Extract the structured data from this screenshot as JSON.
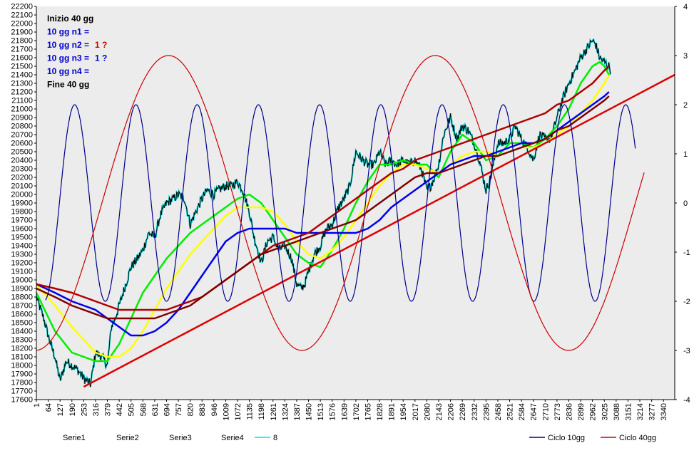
{
  "chart_data": {
    "type": "line",
    "annotations": [
      {
        "text": "Inizio 40 gg",
        "color": "#000000",
        "bold": true
      },
      {
        "text": "10 gg n1 =",
        "color": "#0000cc",
        "bold": true
      },
      {
        "text": "10 gg n2 =",
        "color": "#0000cc",
        "bold": true,
        "suffix": "1 ?",
        "suffix_color": "#cc0000"
      },
      {
        "text": "10 gg n3 =",
        "color": "#0000cc",
        "bold": true,
        "suffix": "1 ?",
        "suffix_color": "#0000cc"
      },
      {
        "text": "10 gg n4 =",
        "color": "#0000cc",
        "bold": true
      },
      {
        "text": "Fine 40 gg",
        "color": "#000000",
        "bold": true
      }
    ],
    "x_ticks": [
      "1",
      "64",
      "127",
      "190",
      "253",
      "316",
      "379",
      "442",
      "505",
      "568",
      "631",
      "694",
      "757",
      "820",
      "883",
      "946",
      "1009",
      "1072",
      "1135",
      "1198",
      "1261",
      "1324",
      "1387",
      "1450",
      "1513",
      "1576",
      "1639",
      "1702",
      "1765",
      "1828",
      "1891",
      "1954",
      "2017",
      "2080",
      "2143",
      "2206",
      "2269",
      "2332",
      "2395",
      "2458",
      "2521",
      "2584",
      "2647",
      "2710",
      "2773",
      "2836",
      "2899",
      "2962",
      "3025",
      "3088",
      "3151",
      "3214",
      "3277",
      "3340"
    ],
    "x_range": [
      1,
      3400
    ],
    "y_left": {
      "min": 17600,
      "max": 22200,
      "step": 100
    },
    "y_right": {
      "min": -4,
      "max": 4,
      "step": 1
    },
    "grid": false,
    "legend_position": "bottom",
    "legend": [
      {
        "name": "Serie1",
        "color": null
      },
      {
        "name": "Serie2",
        "color": null
      },
      {
        "name": "Serie3",
        "color": null
      },
      {
        "name": "Serie4",
        "color": null
      },
      {
        "name": "8",
        "color": "#00e0e0"
      },
      {
        "name": "Ciclo 10gg",
        "color": "#00008b"
      },
      {
        "name": "Ciclo 40gg",
        "color": "#cc0000"
      }
    ],
    "series": [
      {
        "key": "price",
        "style": "price",
        "color": "#000000",
        "color2": "#00d0d0",
        "width": 1.2,
        "axis": "left",
        "x": [
          1,
          40,
          70,
          100,
          127,
          160,
          190,
          220,
          253,
          290,
          316,
          350,
          379,
          400,
          420,
          442,
          470,
          505,
          540,
          568,
          600,
          631,
          660,
          694,
          730,
          757,
          790,
          820,
          850,
          883,
          910,
          946,
          970,
          1009,
          1040,
          1072,
          1100,
          1135,
          1160,
          1180,
          1198,
          1230,
          1261,
          1290,
          1324,
          1360,
          1387,
          1410,
          1430,
          1450,
          1480,
          1513,
          1545,
          1576,
          1610,
          1639,
          1670,
          1702,
          1720,
          1740,
          1765,
          1800,
          1828,
          1860,
          1891,
          1920,
          1954,
          1985,
          2017,
          2050,
          2080,
          2100,
          2120,
          2143,
          2170,
          2206,
          2240,
          2269,
          2300,
          2332,
          2360,
          2395,
          2420,
          2458,
          2490,
          2521,
          2550,
          2584,
          2615,
          2647,
          2680,
          2710,
          2740,
          2773,
          2800,
          2836,
          2870,
          2899,
          2930,
          2962,
          2980,
          3000,
          3025,
          3050,
          3060
        ],
        "y": [
          18800,
          18550,
          18300,
          18100,
          17820,
          18050,
          18000,
          17950,
          17850,
          17780,
          18150,
          18100,
          18000,
          18450,
          18550,
          18700,
          18900,
          19150,
          19250,
          19350,
          19550,
          19500,
          19750,
          19900,
          19950,
          20000,
          19950,
          19650,
          19800,
          19950,
          20050,
          20000,
          20050,
          20100,
          20100,
          20150,
          20050,
          19800,
          19500,
          19350,
          19200,
          19450,
          19500,
          19350,
          19400,
          19250,
          18950,
          18900,
          18950,
          19100,
          19300,
          19400,
          19600,
          19650,
          19850,
          19950,
          20100,
          20500,
          20450,
          20400,
          20350,
          20350,
          20500,
          20350,
          20400,
          20350,
          20400,
          20350,
          20400,
          20300,
          20050,
          20100,
          20200,
          20350,
          20700,
          20900,
          20650,
          20800,
          20750,
          20600,
          20400,
          20050,
          20200,
          20600,
          20600,
          20650,
          20800,
          20650,
          20550,
          20400,
          20700,
          20650,
          20650,
          20900,
          21100,
          21300,
          21450,
          21600,
          21700,
          21800,
          21750,
          21600,
          21550,
          21500,
          21450
        ]
      },
      {
        "key": "ma_fast",
        "style": "solid",
        "color": "#00ee00",
        "width": 2.5,
        "axis": "left",
        "x": [
          1,
          100,
          190,
          253,
          316,
          379,
          442,
          505,
          568,
          631,
          694,
          757,
          820,
          883,
          946,
          1009,
          1072,
          1135,
          1198,
          1261,
          1324,
          1387,
          1450,
          1513,
          1576,
          1639,
          1702,
          1765,
          1828,
          1891,
          1954,
          2017,
          2080,
          2143,
          2206,
          2269,
          2332,
          2395,
          2458,
          2521,
          2584,
          2647,
          2710,
          2773,
          2836,
          2899,
          2962,
          3000,
          3025,
          3050
        ],
        "y": [
          18850,
          18400,
          18150,
          18100,
          18050,
          18050,
          18250,
          18550,
          18850,
          19050,
          19250,
          19400,
          19550,
          19650,
          19750,
          19850,
          19950,
          20000,
          19900,
          19700,
          19500,
          19300,
          19200,
          19150,
          19350,
          19600,
          19900,
          20150,
          20350,
          20350,
          20400,
          20350,
          20350,
          20200,
          20500,
          20700,
          20600,
          20400,
          20450,
          20600,
          20600,
          20550,
          20650,
          20800,
          21000,
          21300,
          21500,
          21550,
          21500,
          21400
        ]
      },
      {
        "key": "ma_mid",
        "style": "solid",
        "color": "#ffff00",
        "width": 2.5,
        "axis": "left",
        "x": [
          1,
          100,
          190,
          253,
          316,
          379,
          442,
          505,
          568,
          631,
          694,
          757,
          820,
          883,
          946,
          1009,
          1072,
          1135,
          1198,
          1261,
          1324,
          1387,
          1450,
          1513,
          1576,
          1639,
          1702,
          1765,
          1828,
          1891,
          1954,
          2017,
          2080,
          2143,
          2206,
          2269,
          2332,
          2395,
          2458,
          2521,
          2584,
          2647,
          2710,
          2773,
          2836,
          2899,
          2962,
          3025,
          3050
        ],
        "y": [
          18950,
          18700,
          18450,
          18300,
          18150,
          18100,
          18100,
          18200,
          18400,
          18650,
          18900,
          19100,
          19300,
          19450,
          19600,
          19750,
          19850,
          19850,
          19850,
          19800,
          19650,
          19450,
          19300,
          19250,
          19350,
          19500,
          19700,
          19900,
          20100,
          20250,
          20350,
          20350,
          20300,
          20250,
          20350,
          20450,
          20500,
          20500,
          20450,
          20500,
          20550,
          20550,
          20600,
          20700,
          20800,
          20950,
          21100,
          21300,
          21400
        ]
      },
      {
        "key": "ma_slow",
        "style": "solid",
        "color": "#0000ee",
        "width": 2.5,
        "axis": "left",
        "x": [
          1,
          100,
          190,
          253,
          316,
          379,
          442,
          505,
          568,
          631,
          694,
          757,
          820,
          883,
          946,
          1009,
          1072,
          1135,
          1198,
          1261,
          1324,
          1387,
          1450,
          1513,
          1576,
          1639,
          1702,
          1765,
          1828,
          1891,
          1954,
          2017,
          2080,
          2143,
          2206,
          2269,
          2332,
          2395,
          2458,
          2521,
          2584,
          2647,
          2710,
          2773,
          2836,
          2899,
          2962,
          3025,
          3050
        ],
        "y": [
          18950,
          18850,
          18750,
          18700,
          18650,
          18550,
          18450,
          18350,
          18350,
          18400,
          18500,
          18650,
          18850,
          19050,
          19250,
          19450,
          19550,
          19600,
          19600,
          19600,
          19600,
          19550,
          19550,
          19550,
          19550,
          19550,
          19550,
          19600,
          19700,
          19850,
          19950,
          20050,
          20150,
          20250,
          20350,
          20400,
          20450,
          20450,
          20500,
          20550,
          20600,
          20600,
          20650,
          20750,
          20850,
          20950,
          21050,
          21150,
          21200
        ]
      },
      {
        "key": "ma_long1",
        "style": "solid",
        "color": "#b00000",
        "width": 2.5,
        "axis": "left",
        "x": [
          1,
          100,
          190,
          253,
          316,
          379,
          442,
          505,
          568,
          631,
          694,
          757,
          820,
          883,
          946,
          1009,
          1072,
          1135,
          1198,
          1261,
          1324,
          1387,
          1450,
          1513,
          1576,
          1639,
          1702,
          1765,
          1828,
          1891,
          1954,
          2017,
          2080,
          2143,
          2206,
          2269,
          2332,
          2395,
          2458,
          2521,
          2584,
          2647,
          2710,
          2773,
          2836,
          2899,
          2962,
          3025,
          3050
        ],
        "y": [
          18950,
          18900,
          18850,
          18800,
          18750,
          18700,
          18650,
          18650,
          18650,
          18650,
          18650,
          18700,
          18750,
          18800,
          18900,
          19000,
          19100,
          19200,
          19300,
          19400,
          19450,
          19500,
          19550,
          19650,
          19750,
          19850,
          19950,
          20050,
          20150,
          20250,
          20300,
          20400,
          20450,
          20500,
          20550,
          20600,
          20650,
          20700,
          20750,
          20800,
          20850,
          20900,
          20950,
          21050,
          21100,
          21200,
          21300,
          21450,
          21500
        ]
      },
      {
        "key": "ma_long2",
        "style": "solid",
        "color": "#800000",
        "width": 2.5,
        "axis": "left",
        "x": [
          1,
          100,
          190,
          253,
          316,
          379,
          442,
          505,
          568,
          631,
          694,
          757,
          820,
          883,
          946,
          1009,
          1072,
          1135,
          1198,
          1261,
          1324,
          1387,
          1450,
          1513,
          1576,
          1639,
          1702,
          1765,
          1828,
          1891,
          1954,
          2017,
          2080,
          2143,
          2206,
          2269,
          2332,
          2395,
          2458,
          2521,
          2584,
          2647,
          2710,
          2773,
          2836,
          2899,
          2962,
          3025,
          3050
        ],
        "y": [
          18900,
          18800,
          18700,
          18650,
          18600,
          18550,
          18550,
          18550,
          18550,
          18550,
          18600,
          18650,
          18700,
          18800,
          18900,
          19000,
          19100,
          19200,
          19300,
          19350,
          19400,
          19450,
          19500,
          19550,
          19600,
          19650,
          19700,
          19800,
          19900,
          20000,
          20100,
          20200,
          20250,
          20250,
          20300,
          20350,
          20400,
          20450,
          20450,
          20500,
          20550,
          20600,
          20650,
          20750,
          20800,
          20900,
          21000,
          21100,
          21150
        ]
      },
      {
        "key": "trend",
        "style": "solid",
        "color": "#dd0000",
        "width": 2.5,
        "axis": "left",
        "x": [
          253,
          3400
        ],
        "y": [
          17750,
          21400
        ]
      },
      {
        "key": "cycle10",
        "style": "sine",
        "color": "#00008b",
        "width": 1.2,
        "axis": "right",
        "x_start": 50,
        "x_end": 3190,
        "period": 326,
        "amplitude": 2,
        "peak_x": 205
      },
      {
        "key": "cycle40",
        "style": "sine",
        "color": "#cc0000",
        "width": 1.2,
        "axis": "right",
        "x_start": 1,
        "x_end": 3240,
        "period": 1420,
        "amplitude": 3,
        "peak_x": 705
      }
    ]
  }
}
